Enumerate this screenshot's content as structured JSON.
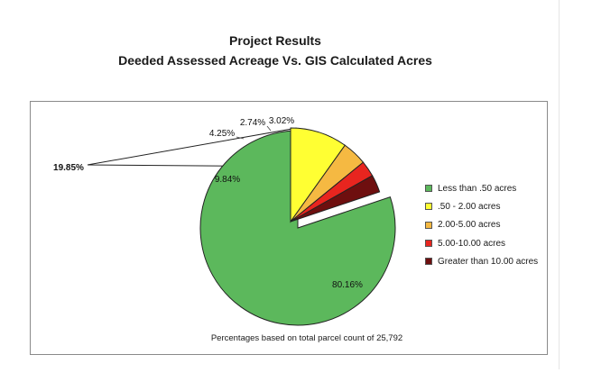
{
  "chart_data": {
    "type": "pie",
    "title": "Project Results",
    "subtitle": "Deeded Assessed Acreage Vs. GIS Calculated Acres",
    "slices": [
      {
        "label": "Less than .50 acres",
        "value": 80.16,
        "display": "80.16%",
        "color": "#5cb85c"
      },
      {
        "label": ".50 - 2.00 acres",
        "value": 9.84,
        "display": "9.84%",
        "color": "#ffff33"
      },
      {
        "label": "2.00-5.00 acres",
        "value": 4.25,
        "display": "4.25%",
        "color": "#f5b942"
      },
      {
        "label": "5.00-10.00 acres",
        "value": 2.74,
        "display": "2.74%",
        "color": "#e8251f"
      },
      {
        "label": "Greater than 10.00 acres",
        "value": 3.02,
        "display": "3.02%",
        "color": "#6e0f0f"
      }
    ],
    "exploded_group_total": "19.85%",
    "footnote": "Percentages based on total parcel count of 25,792",
    "legend_position": "right"
  }
}
